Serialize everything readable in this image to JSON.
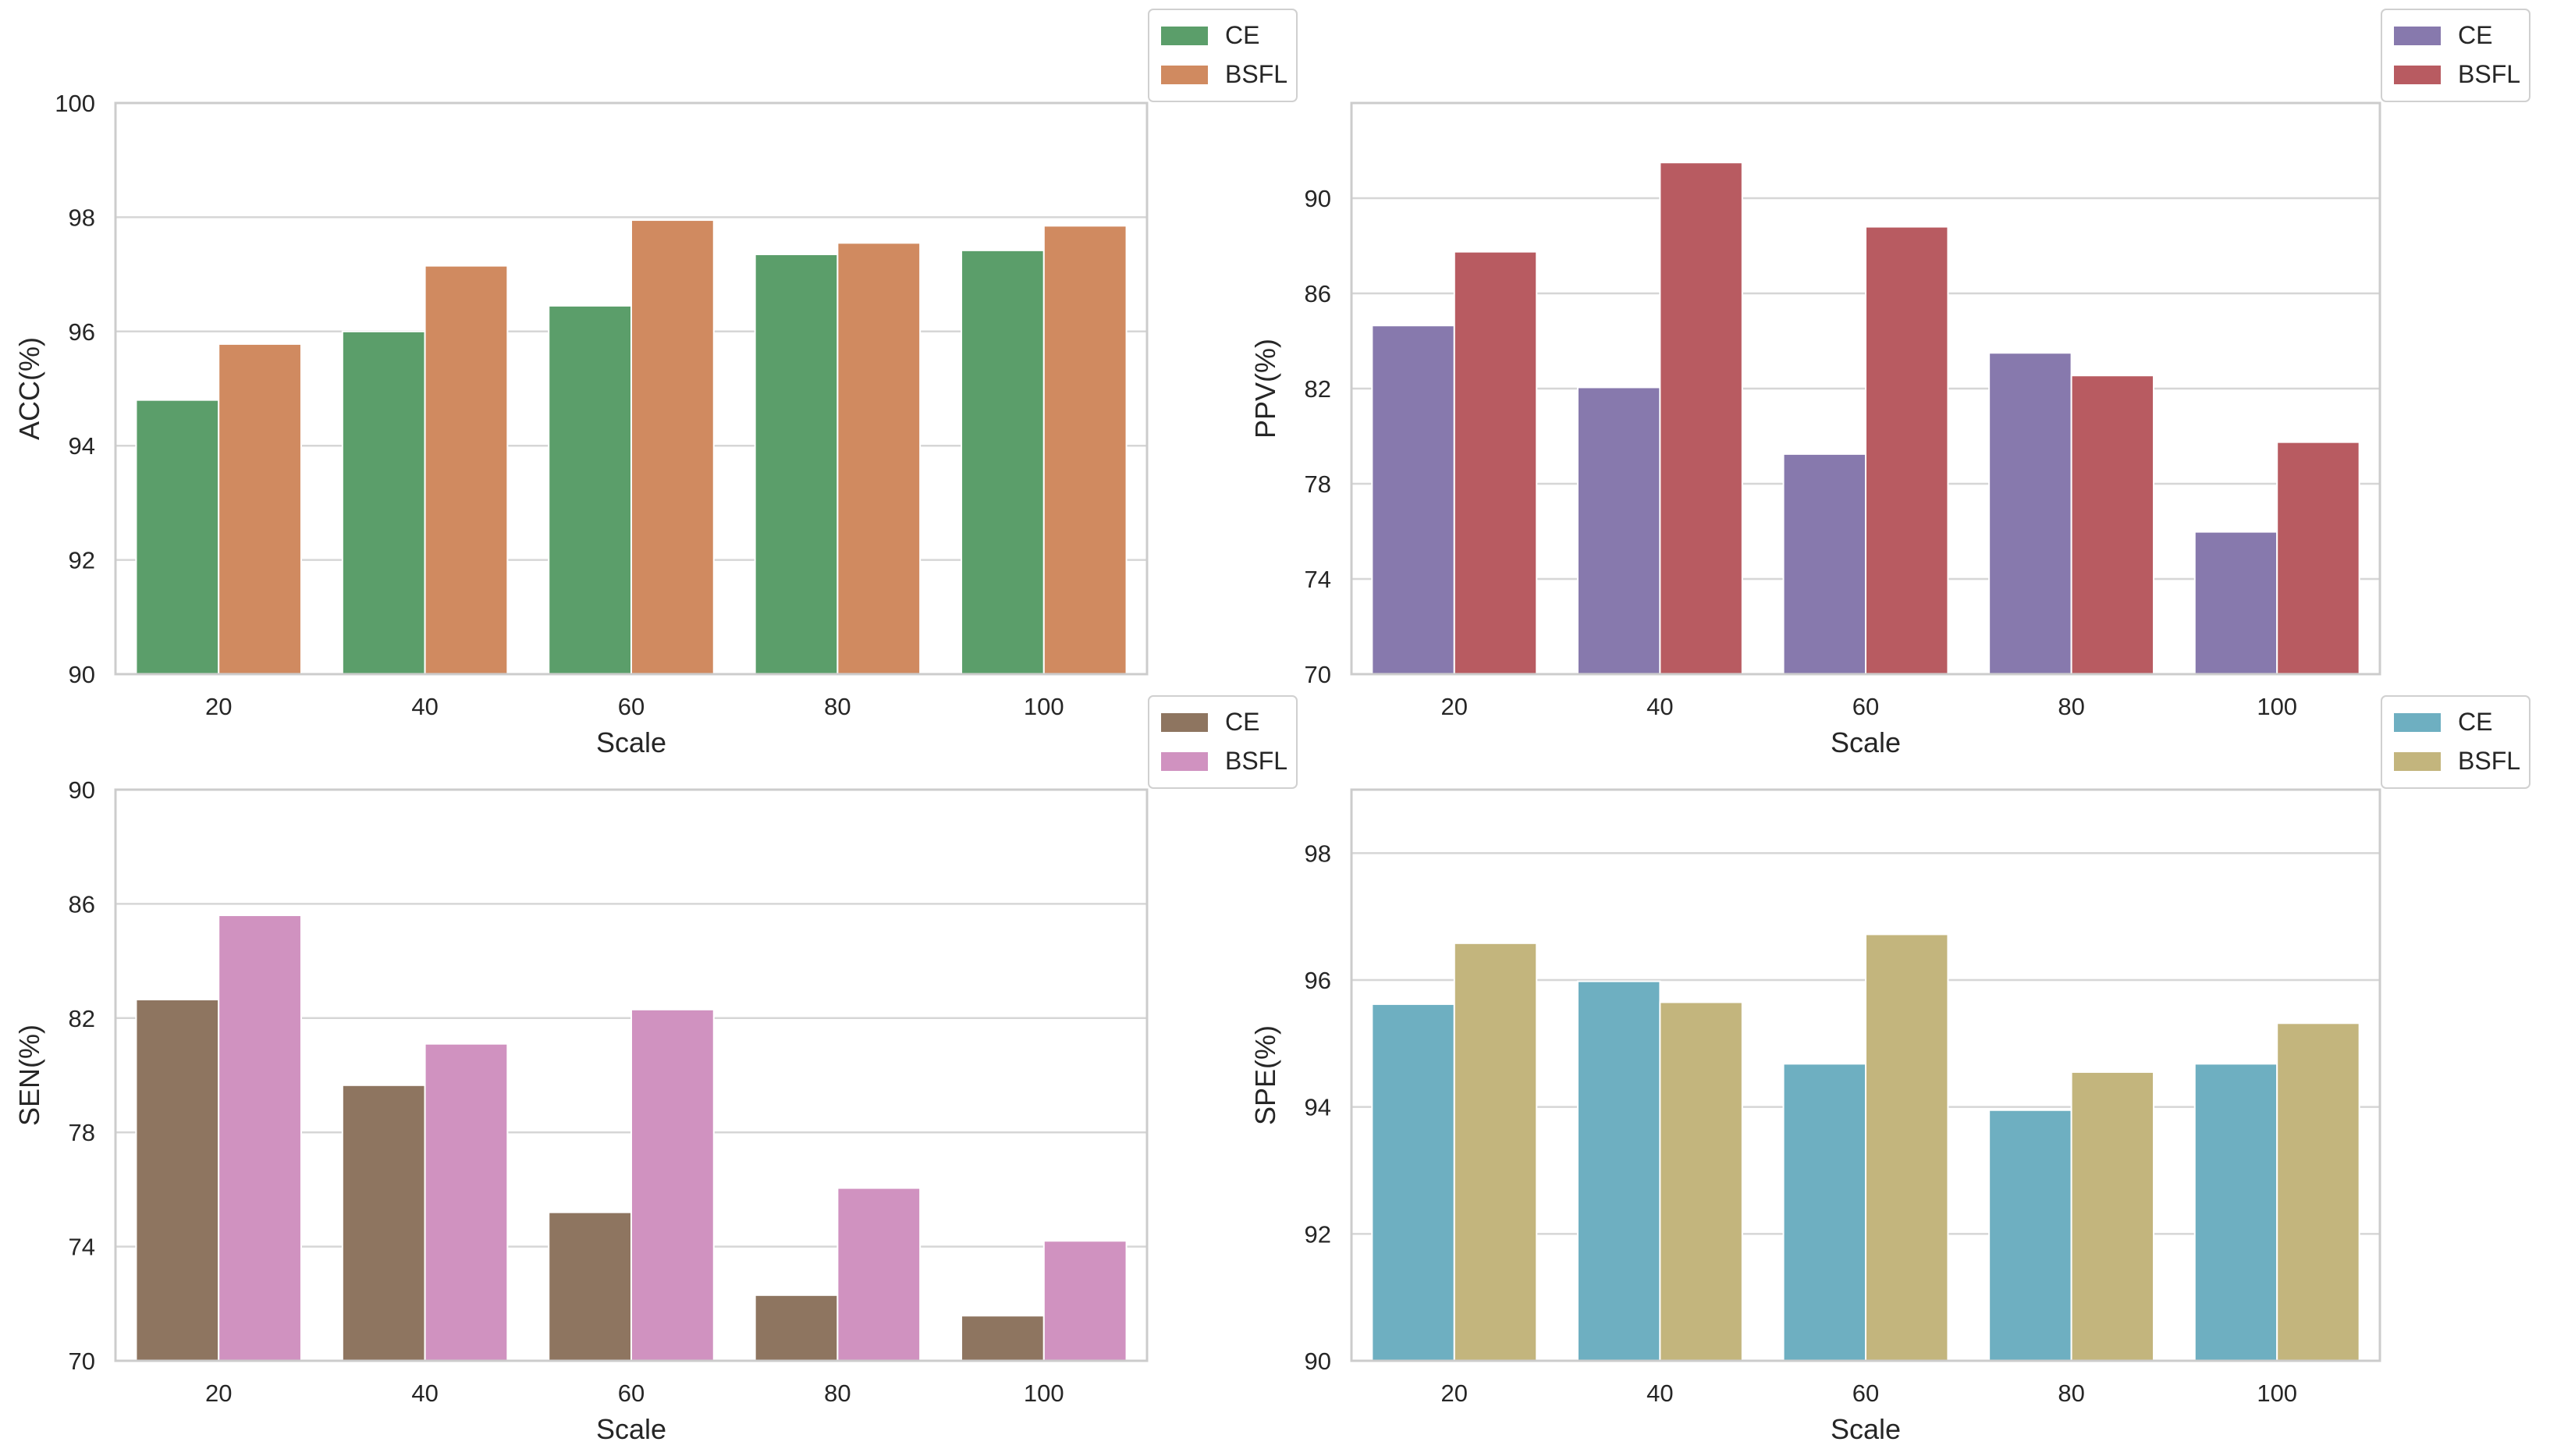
{
  "chart_data": [
    {
      "type": "bar",
      "metric": "ACC",
      "categories": [
        "20",
        "40",
        "60",
        "80",
        "100"
      ],
      "series": [
        {
          "name": "CE",
          "color": "#5b9e6a",
          "values": [
            94.8,
            96.0,
            96.45,
            97.35,
            97.42
          ]
        },
        {
          "name": "BSFL",
          "color": "#d08a60",
          "values": [
            95.78,
            97.15,
            97.95,
            97.55,
            97.85
          ]
        }
      ],
      "xlabel": "Scale",
      "ylabel": "ACC(%)",
      "ylim": [
        90,
        100
      ],
      "yticks": [
        "90",
        "92",
        "94",
        "96",
        "98",
        "100"
      ],
      "legend": "top-right",
      "grid": true
    },
    {
      "type": "bar",
      "metric": "PPV",
      "categories": [
        "20",
        "40",
        "60",
        "80",
        "100"
      ],
      "series": [
        {
          "name": "CE",
          "color": "#8779ad",
          "values": [
            84.65,
            82.05,
            79.25,
            83.5,
            75.98
          ]
        },
        {
          "name": "BSFL",
          "color": "#b85b61",
          "values": [
            87.75,
            91.5,
            88.8,
            82.55,
            79.75
          ]
        }
      ],
      "xlabel": "Scale",
      "ylabel": "PPV(%)",
      "ylim": [
        70,
        94
      ],
      "yticks": [
        "70",
        "74",
        "78",
        "82",
        "86",
        "90"
      ],
      "legend": "top-right",
      "grid": true
    },
    {
      "type": "bar",
      "metric": "SEN",
      "categories": [
        "20",
        "40",
        "60",
        "80",
        "100"
      ],
      "series": [
        {
          "name": "CE",
          "color": "#8e7560",
          "values": [
            82.65,
            79.65,
            75.2,
            72.3,
            71.58
          ]
        },
        {
          "name": "BSFL",
          "color": "#d092c0",
          "values": [
            85.6,
            81.1,
            82.3,
            76.05,
            74.2
          ]
        }
      ],
      "xlabel": "Scale",
      "ylabel": "SEN(%)",
      "ylim": [
        70,
        90
      ],
      "yticks": [
        "70",
        "74",
        "78",
        "82",
        "86",
        "90"
      ],
      "legend": "top-right",
      "grid": true
    },
    {
      "type": "bar",
      "metric": "SPE",
      "categories": [
        "20",
        "40",
        "60",
        "80",
        "100"
      ],
      "series": [
        {
          "name": "CE",
          "color": "#6eafc1",
          "values": [
            95.62,
            95.98,
            94.68,
            93.95,
            94.68
          ]
        },
        {
          "name": "BSFL",
          "color": "#c3b57d",
          "values": [
            96.58,
            95.65,
            96.72,
            94.55,
            95.32
          ]
        }
      ],
      "xlabel": "Scale",
      "ylabel": "SPE(%)",
      "ylim": [
        90,
        99
      ],
      "yticks": [
        "90",
        "92",
        "94",
        "96",
        "98"
      ],
      "legend": "top-right",
      "grid": true
    }
  ]
}
